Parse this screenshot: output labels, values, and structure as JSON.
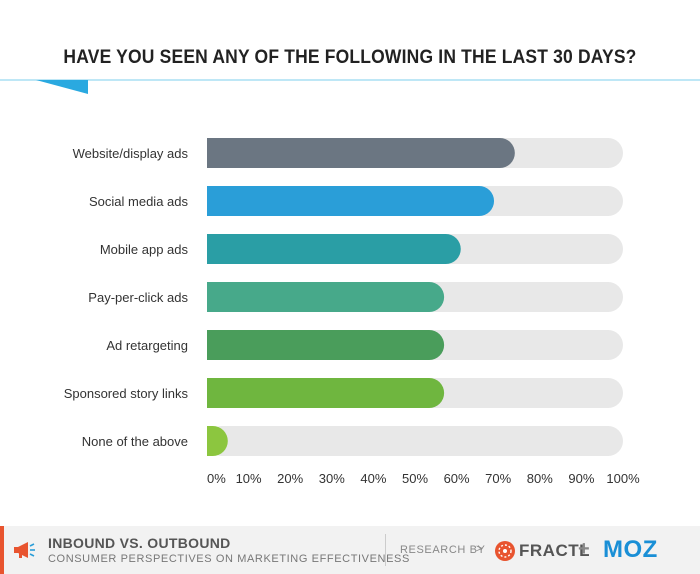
{
  "chart_data": {
    "type": "bar",
    "orientation": "horizontal",
    "title": "HAVE YOU SEEN ANY OF THE FOLLOWING IN THE LAST 30 DAYS?",
    "categories": [
      "Website/display ads",
      "Social media ads",
      "Mobile app ads",
      "Pay-per-click ads",
      "Ad retargeting",
      "Sponsored story links",
      "None of the above"
    ],
    "values": [
      74,
      69,
      61,
      57,
      57,
      57,
      5
    ],
    "colors": [
      "#6b7682",
      "#2a9ed8",
      "#2a9ea5",
      "#47a98a",
      "#4a9d5b",
      "#6fb63f",
      "#8cc63f"
    ],
    "track_color": "#e8e8e8",
    "xlim": [
      0,
      100
    ],
    "x_ticks": [
      "0%",
      "10%",
      "20%",
      "30%",
      "40%",
      "50%",
      "60%",
      "70%",
      "80%",
      "90%",
      "100%"
    ],
    "grid": false,
    "legend": "none"
  },
  "footer": {
    "title": "INBOUND VS. OUTBOUND",
    "subtitle": "CONSUMER PERSPECTIVES ON MARKETING EFFECTIVENESS",
    "research_by": "RESEARCH BY",
    "arrow": ">",
    "fractl": "FRACTL",
    "plus": "+",
    "moz": "MOZ",
    "accent_color": "#e8542f",
    "moz_color": "#1a8fd6"
  },
  "icons": {
    "footer_icon": "megaphone-icon",
    "fractl_icon": "fractl-logo-icon"
  }
}
